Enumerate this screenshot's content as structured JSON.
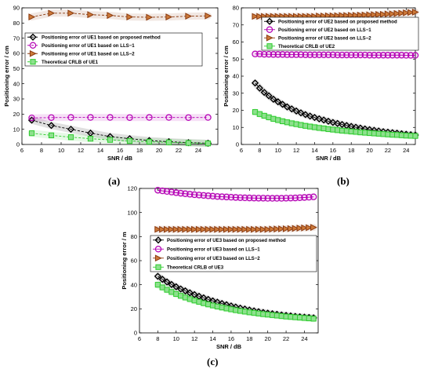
{
  "panel_labels": [
    "(a)",
    "(b)",
    "(c)"
  ],
  "chart_data": [
    {
      "type": "line",
      "xlabel": "SNR / dB",
      "ylabel": "Positioning error / cm",
      "xlim": [
        6,
        26
      ],
      "ylim": [
        0,
        90
      ],
      "xticks": [
        6,
        8,
        10,
        12,
        14,
        16,
        18,
        20,
        22,
        24
      ],
      "yticks": [
        0,
        10,
        20,
        30,
        40,
        50,
        60,
        70,
        80,
        90
      ],
      "grid": false,
      "legend_position": "center-left",
      "legend": [
        "Positioning error of UE1 based on proposed method",
        "Positioning error of UE1 based on LLS−1",
        "Positioning error of UE1 based on LLS−2",
        "Theoretical CRLB of UE1"
      ],
      "x": [
        7,
        9,
        11,
        13,
        15,
        17,
        19,
        21,
        23,
        25
      ],
      "series": [
        {
          "name": "Positioning error of UE1 based on proposed method",
          "marker": "diamond",
          "color": "#000000",
          "linestyle": "dashed",
          "values": [
            16,
            12.5,
            10,
            7.5,
            5.2,
            3.8,
            2.6,
            1.8,
            1.2,
            0.8
          ]
        },
        {
          "name": "Positioning error of UE1 based on LLS−1",
          "marker": "circle",
          "color": "#b400b4",
          "linestyle": "dashed",
          "values": [
            17.5,
            17.7,
            17.8,
            17.8,
            17.8,
            17.7,
            17.8,
            17.8,
            17.7,
            17.8
          ]
        },
        {
          "name": "Positioning error of UE1 based on LLS−2",
          "marker": "triangle-right",
          "color": "#8b3a0f",
          "linestyle": "dashed",
          "values": [
            84,
            86.5,
            86.5,
            85.5,
            85,
            84,
            83.8,
            84,
            84.5,
            84.7
          ]
        },
        {
          "name": "Theoretical CRLB of UE1",
          "marker": "square",
          "color": "#2ecc2e",
          "linestyle": "dashed",
          "values": [
            7.4,
            6.0,
            4.8,
            3.8,
            3.0,
            2.3,
            1.8,
            1.4,
            1.0,
            0.7
          ]
        }
      ]
    },
    {
      "type": "line",
      "xlabel": "SNR / dB",
      "ylabel": "Positioning error / cm",
      "xlim": [
        6,
        25
      ],
      "ylim": [
        0,
        80
      ],
      "xticks": [
        6,
        8,
        10,
        12,
        14,
        16,
        18,
        20,
        22,
        24
      ],
      "yticks": [
        0,
        10,
        20,
        30,
        40,
        50,
        60,
        70,
        80
      ],
      "grid": false,
      "legend_position": "top-right",
      "legend": [
        "Positioning error of UE2 based on proposed method",
        "Positioning error of UE2 based on LLS−1",
        "Positioning error of UE2 based on LLS−2",
        "Theoretical CRLB of UE2"
      ],
      "x": [
        7.5,
        8,
        8.5,
        9,
        9.5,
        10,
        10.5,
        11,
        11.5,
        12,
        12.5,
        13,
        13.5,
        14,
        14.5,
        15,
        15.5,
        16,
        16.5,
        17,
        17.5,
        18,
        18.5,
        19,
        19.5,
        20,
        20.5,
        21,
        21.5,
        22,
        22.5,
        23,
        23.5,
        24,
        24.5,
        25
      ],
      "series": [
        {
          "name": "Positioning error of UE2 based on proposed method",
          "marker": "diamond",
          "color": "#000000",
          "linestyle": "solid",
          "values": [
            36,
            33,
            30.5,
            28.5,
            26.5,
            25,
            23.5,
            22,
            20.8,
            19.6,
            18.5,
            17.5,
            16.6,
            15.8,
            15,
            14.3,
            13.6,
            12.9,
            12.3,
            11.7,
            11.1,
            10.6,
            10.1,
            9.6,
            9.1,
            8.7,
            8.3,
            7.9,
            7.5,
            7.2,
            6.9,
            6.6,
            6.3,
            6.0,
            5.7,
            5.5
          ]
        },
        {
          "name": "Positioning error of UE2 based on LLS−1",
          "marker": "circle",
          "color": "#b400b4",
          "linestyle": "solid",
          "values": [
            53,
            53,
            52.8,
            52.8,
            52.7,
            52.7,
            52.7,
            52.6,
            52.6,
            52.6,
            52.6,
            52.5,
            52.5,
            52.5,
            52.5,
            52.5,
            52.5,
            52.5,
            52.4,
            52.4,
            52.4,
            52.4,
            52.4,
            52.4,
            52.4,
            52.3,
            52.3,
            52.3,
            52.3,
            52.3,
            52.3,
            52.3,
            52.3,
            52.2,
            52.2,
            52.2
          ]
        },
        {
          "name": "Positioning error of UE2 based on LLS−2",
          "marker": "triangle-right",
          "color": "#8b3a0f",
          "linestyle": "solid",
          "values": [
            75,
            75,
            75,
            75,
            75,
            75,
            75,
            75,
            75,
            75,
            75,
            75,
            75,
            75,
            75.2,
            75.2,
            75.3,
            75.3,
            75.4,
            75.5,
            75.5,
            75.6,
            75.6,
            75.7,
            75.8,
            75.9,
            76,
            76.1,
            76.2,
            76.4,
            76.5,
            76.7,
            76.9,
            77.1,
            77.3,
            77.5
          ]
        },
        {
          "name": "Theoretical CRLB of UE2",
          "marker": "square",
          "color": "#2ecc2e",
          "linestyle": "solid",
          "values": [
            19,
            17.8,
            16.8,
            15.9,
            15,
            14.3,
            13.6,
            13,
            12.4,
            11.9,
            11.4,
            10.9,
            10.5,
            10.1,
            9.7,
            9.4,
            9.0,
            8.7,
            8.4,
            8.1,
            7.9,
            7.6,
            7.4,
            7.1,
            6.9,
            6.7,
            6.5,
            6.3,
            6.1,
            5.9,
            5.7,
            5.6,
            5.4,
            5.2,
            5.1,
            5.0
          ]
        }
      ]
    },
    {
      "type": "line",
      "xlabel": "SNR / dB",
      "ylabel": "Positioning error / m",
      "xlim": [
        6,
        25.5
      ],
      "ylim": [
        0,
        120
      ],
      "xticks": [
        6,
        8,
        10,
        12,
        14,
        16,
        18,
        20,
        22,
        24
      ],
      "yticks": [
        0,
        20,
        40,
        60,
        80,
        100,
        120
      ],
      "grid": false,
      "legend_position": "center",
      "legend": [
        "Positioning error of UE3 based on proposed method",
        "Positioning error of UE3 based on LLS−1",
        "Positioning error of UE3 based on LLS−2",
        "Theoretical CRLB of UE3"
      ],
      "x": [
        8,
        8.5,
        9,
        9.5,
        10,
        10.5,
        11,
        11.5,
        12,
        12.5,
        13,
        13.5,
        14,
        14.5,
        15,
        15.5,
        16,
        16.5,
        17,
        17.5,
        18,
        18.5,
        19,
        19.5,
        20,
        20.5,
        21,
        21.5,
        22,
        22.5,
        23,
        23.5,
        24,
        24.5,
        25
      ],
      "series": [
        {
          "name": "Positioning error of UE3 based on proposed method",
          "marker": "diamond",
          "color": "#000000",
          "linestyle": "solid",
          "values": [
            47,
            44.5,
            42.3,
            40.2,
            38.3,
            36.5,
            34.9,
            33.3,
            31.8,
            30.4,
            29.1,
            27.8,
            26.6,
            25.5,
            24.4,
            23.4,
            22.4,
            21.5,
            20.6,
            19.8,
            19.0,
            18.3,
            17.6,
            17.0,
            16.4,
            15.9,
            15.4,
            14.9,
            14.5,
            14.1,
            13.7,
            13.4,
            13.1,
            12.8,
            12.5
          ]
        },
        {
          "name": "Positioning error of UE3 based on LLS−1",
          "marker": "circle",
          "color": "#b400b4",
          "linestyle": "solid",
          "values": [
            118.5,
            118,
            117.5,
            117,
            116.5,
            116,
            115.6,
            115.2,
            114.8,
            114.5,
            114.2,
            113.9,
            113.6,
            113.3,
            113.1,
            112.9,
            112.7,
            112.5,
            112.3,
            112.2,
            112.1,
            112,
            111.9,
            111.9,
            111.8,
            111.8,
            111.8,
            111.8,
            111.9,
            112,
            112.1,
            112.3,
            112.5,
            112.7,
            113
          ]
        },
        {
          "name": "Positioning error of UE3 based on LLS−2",
          "marker": "triangle-right",
          "color": "#8b3a0f",
          "linestyle": "solid",
          "values": [
            86,
            86,
            86,
            86,
            86,
            86,
            86,
            86,
            86,
            86,
            86,
            86,
            86,
            86,
            86,
            86,
            86,
            86,
            86,
            86,
            86,
            86,
            86,
            86,
            86,
            86.2,
            86.3,
            86.4,
            86.5,
            86.6,
            86.8,
            87,
            87.2,
            87.4,
            87.6
          ]
        },
        {
          "name": "Theoretical CRLB of UE3",
          "marker": "square",
          "color": "#2ecc2e",
          "linestyle": "solid",
          "values": [
            40,
            37.8,
            35.8,
            34,
            32.3,
            30.8,
            29.4,
            28.1,
            26.9,
            25.8,
            24.7,
            23.7,
            22.8,
            21.9,
            21.1,
            20.3,
            19.6,
            18.9,
            18.3,
            17.7,
            17.1,
            16.6,
            16.1,
            15.6,
            15.2,
            14.8,
            14.4,
            14.0,
            13.6,
            13.3,
            13.0,
            12.7,
            12.4,
            12.1,
            11.8
          ]
        }
      ]
    }
  ]
}
